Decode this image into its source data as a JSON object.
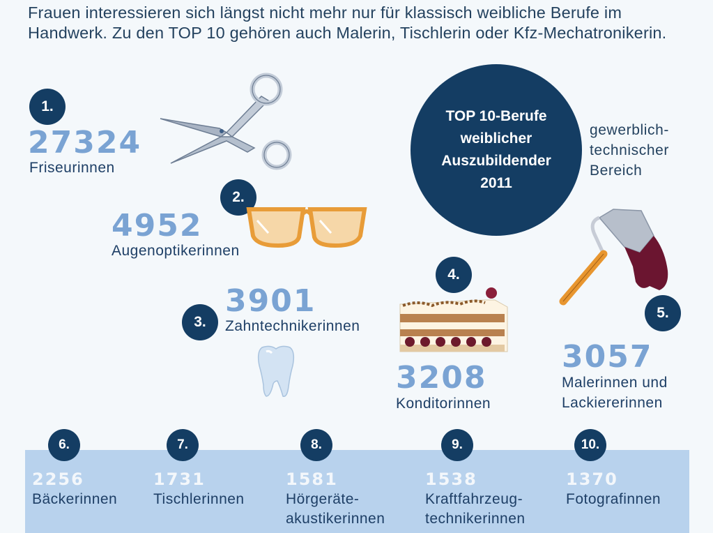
{
  "intro": "Frauen interessieren sich längst nicht mehr nur für klassisch weibliche Berufe im Handwerk. Zu den TOP 10 gehören auch Malerin, Tischlerin oder Kfz-Mechatronikerin.",
  "circle": {
    "title": "TOP 10-Berufe weiblicher Auszubildender 2011"
  },
  "side_note": "gewerblich-technischer Bereich",
  "colors": {
    "dark_blue": "#143d63",
    "number_blue": "#7aa3d3",
    "band": "#b8d2ed"
  },
  "top5": [
    {
      "rank": "1.",
      "value": "27324",
      "label": "Friseurinnen",
      "icon": "scissors-icon"
    },
    {
      "rank": "2.",
      "value": "4952",
      "label": "Augenoptikerinnen",
      "icon": "glasses-icon"
    },
    {
      "rank": "3.",
      "value": "3901",
      "label": "Zahntechnikerinnen",
      "icon": "tooth-icon"
    },
    {
      "rank": "4.",
      "value": "3208",
      "label": "Konditorinnen",
      "icon": "cake-icon"
    },
    {
      "rank": "5.",
      "value": "3057",
      "label_line1": "Malerinnen und",
      "label_line2": "Lackiererinnen",
      "icon": "paint-roller-icon"
    }
  ],
  "band": [
    {
      "rank": "6.",
      "value": "2256",
      "label_line1": "Bäckerinnen",
      "label_line2": ""
    },
    {
      "rank": "7.",
      "value": "1731",
      "label_line1": "Tischlerinnen",
      "label_line2": ""
    },
    {
      "rank": "8.",
      "value": "1581",
      "label_line1": "Hörgeräte-",
      "label_line2": "akustikerinnen"
    },
    {
      "rank": "9.",
      "value": "1538",
      "label_line1": "Kraftfahrzeug-",
      "label_line2": "technikerinnen"
    },
    {
      "rank": "10.",
      "value": "1370",
      "label_line1": "Fotografinnen",
      "label_line2": ""
    }
  ]
}
